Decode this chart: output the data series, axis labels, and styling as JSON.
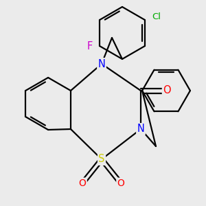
{
  "background_color": "#ebebeb",
  "bond_color": "#000000",
  "bond_lw": 1.6,
  "figsize": [
    3.0,
    3.0
  ],
  "dpi": 100,
  "atom_colors": {
    "N": "#0000ff",
    "S": "#cccc00",
    "O": "#ff0000",
    "Cl": "#00aa00",
    "F": "#cc00cc"
  }
}
